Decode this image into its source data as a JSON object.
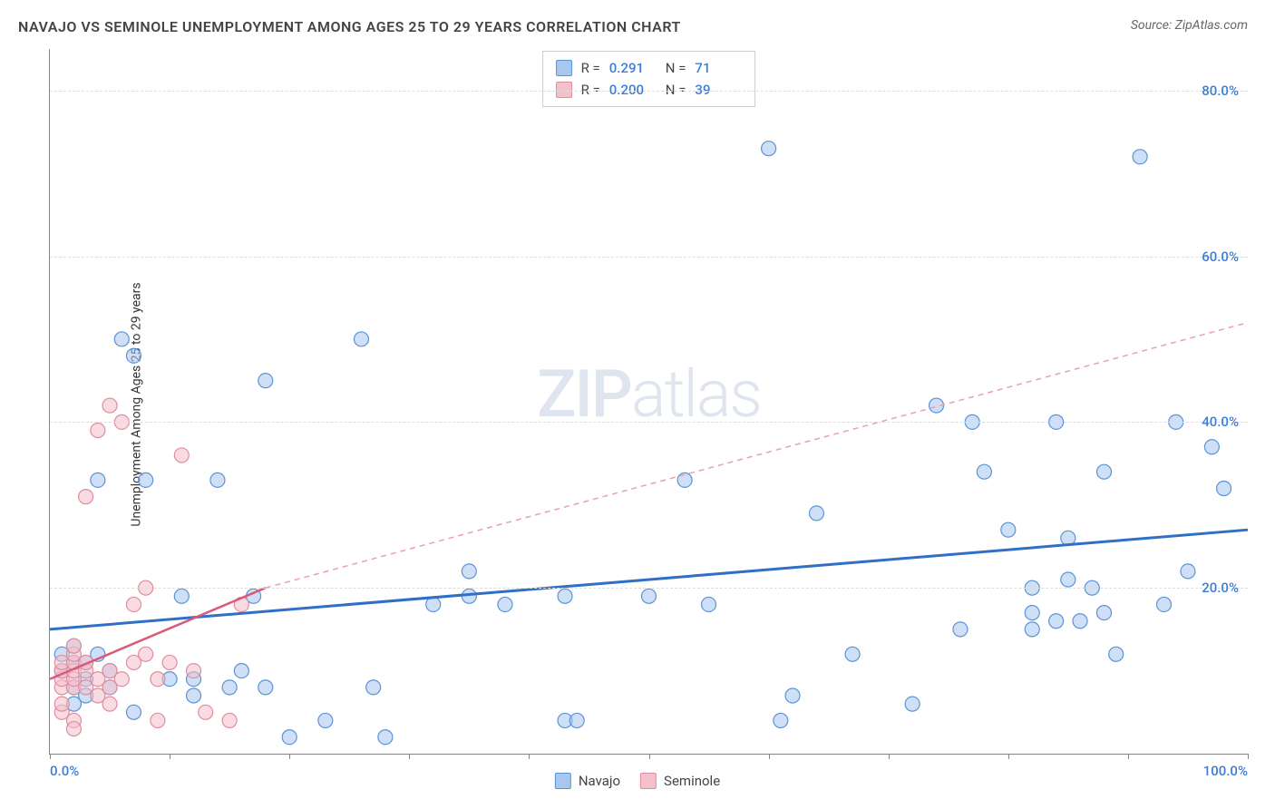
{
  "title": "NAVAJO VS SEMINOLE UNEMPLOYMENT AMONG AGES 25 TO 29 YEARS CORRELATION CHART",
  "source": "Source: ZipAtlas.com",
  "y_axis_label": "Unemployment Among Ages 25 to 29 years",
  "watermark_a": "ZIP",
  "watermark_b": "atlas",
  "chart": {
    "type": "scatter",
    "xlim": [
      0,
      100
    ],
    "ylim": [
      0,
      85
    ],
    "x_ticks": [
      0,
      10,
      20,
      30,
      40,
      50,
      60,
      70,
      80,
      90,
      100
    ],
    "x_tick_labels": {
      "0": "0.0%",
      "100": "100.0%"
    },
    "y_ticks": [
      20,
      40,
      60,
      80
    ],
    "y_tick_labels": {
      "20": "20.0%",
      "40": "40.0%",
      "60": "60.0%",
      "80": "80.0%"
    },
    "grid_color": "#dddddd",
    "background_color": "#ffffff",
    "marker_radius": 8,
    "marker_opacity": 0.55,
    "series": [
      {
        "name": "Navajo",
        "color_fill": "#a7c7ee",
        "color_stroke": "#5a93d6",
        "r_value": "0.291",
        "n_value": "71",
        "trend": {
          "x1": 0,
          "y1": 15,
          "x2": 100,
          "y2": 27,
          "dash": false,
          "stroke": "#2f6fc7",
          "width": 3
        },
        "trend_ext": null,
        "points": [
          [
            1,
            10
          ],
          [
            1,
            12
          ],
          [
            2,
            8
          ],
          [
            2,
            11
          ],
          [
            2,
            13
          ],
          [
            2,
            6
          ],
          [
            3,
            9
          ],
          [
            3,
            11
          ],
          [
            3,
            7
          ],
          [
            4,
            12
          ],
          [
            4,
            33
          ],
          [
            5,
            8
          ],
          [
            5,
            10
          ],
          [
            6,
            50
          ],
          [
            7,
            48
          ],
          [
            7,
            5
          ],
          [
            8,
            33
          ],
          [
            10,
            9
          ],
          [
            11,
            19
          ],
          [
            12,
            7
          ],
          [
            12,
            9
          ],
          [
            14,
            33
          ],
          [
            15,
            8
          ],
          [
            16,
            10
          ],
          [
            17,
            19
          ],
          [
            18,
            45
          ],
          [
            18,
            8
          ],
          [
            20,
            2
          ],
          [
            23,
            4
          ],
          [
            26,
            50
          ],
          [
            27,
            8
          ],
          [
            28,
            2
          ],
          [
            32,
            18
          ],
          [
            35,
            22
          ],
          [
            35,
            19
          ],
          [
            38,
            18
          ],
          [
            43,
            19
          ],
          [
            43,
            4
          ],
          [
            44,
            4
          ],
          [
            50,
            19
          ],
          [
            53,
            33
          ],
          [
            55,
            18
          ],
          [
            60,
            73
          ],
          [
            61,
            4
          ],
          [
            62,
            7
          ],
          [
            64,
            29
          ],
          [
            67,
            12
          ],
          [
            72,
            6
          ],
          [
            74,
            42
          ],
          [
            76,
            15
          ],
          [
            77,
            40
          ],
          [
            78,
            34
          ],
          [
            80,
            27
          ],
          [
            82,
            15
          ],
          [
            82,
            17
          ],
          [
            82,
            20
          ],
          [
            84,
            40
          ],
          [
            84,
            16
          ],
          [
            85,
            21
          ],
          [
            85,
            26
          ],
          [
            86,
            16
          ],
          [
            87,
            20
          ],
          [
            88,
            17
          ],
          [
            88,
            34
          ],
          [
            89,
            12
          ],
          [
            91,
            72
          ],
          [
            93,
            18
          ],
          [
            94,
            40
          ],
          [
            95,
            22
          ],
          [
            97,
            37
          ],
          [
            98,
            32
          ]
        ]
      },
      {
        "name": "Seminole",
        "color_fill": "#f4c0ca",
        "color_stroke": "#e08ca0",
        "r_value": "0.200",
        "n_value": "39",
        "trend": {
          "x1": 0,
          "y1": 9,
          "x2": 18,
          "y2": 20,
          "dash": false,
          "stroke": "#d85a78",
          "width": 2.5
        },
        "trend_ext": {
          "x1": 18,
          "y1": 20,
          "x2": 100,
          "y2": 52,
          "dash": true,
          "stroke": "#e8a0b0",
          "width": 1.5
        },
        "points": [
          [
            1,
            8
          ],
          [
            1,
            9
          ],
          [
            1,
            10
          ],
          [
            1,
            11
          ],
          [
            1,
            5
          ],
          [
            1,
            6
          ],
          [
            2,
            4
          ],
          [
            2,
            8
          ],
          [
            2,
            9
          ],
          [
            2,
            10
          ],
          [
            2,
            11
          ],
          [
            2,
            12
          ],
          [
            2,
            13
          ],
          [
            2,
            3
          ],
          [
            3,
            8
          ],
          [
            3,
            10
          ],
          [
            3,
            11
          ],
          [
            3,
            31
          ],
          [
            4,
            7
          ],
          [
            4,
            9
          ],
          [
            4,
            39
          ],
          [
            5,
            6
          ],
          [
            5,
            8
          ],
          [
            5,
            10
          ],
          [
            5,
            42
          ],
          [
            6,
            9
          ],
          [
            6,
            40
          ],
          [
            7,
            11
          ],
          [
            7,
            18
          ],
          [
            8,
            12
          ],
          [
            8,
            20
          ],
          [
            9,
            4
          ],
          [
            9,
            9
          ],
          [
            10,
            11
          ],
          [
            11,
            36
          ],
          [
            12,
            10
          ],
          [
            13,
            5
          ],
          [
            15,
            4
          ],
          [
            16,
            18
          ]
        ]
      }
    ]
  },
  "legend_series": [
    {
      "label": "Navajo",
      "fill": "#a7c7ee",
      "stroke": "#5a93d6"
    },
    {
      "label": "Seminole",
      "fill": "#f4c0ca",
      "stroke": "#e08ca0"
    }
  ]
}
